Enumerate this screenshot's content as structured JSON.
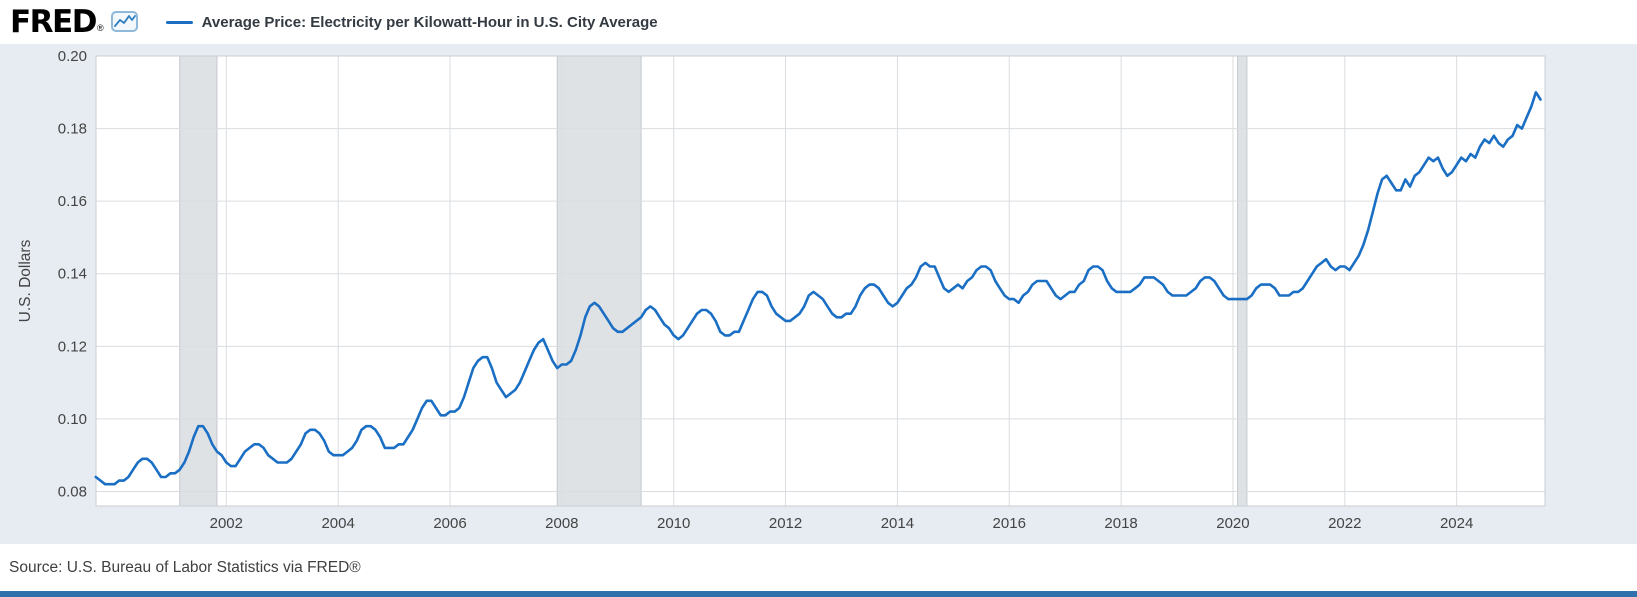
{
  "header": {
    "logo_text": "FRED",
    "registered_mark": "®"
  },
  "footer": {
    "source_text": "Source: U.S. Bureau of Labor Statistics via FRED®"
  },
  "colors": {
    "line": "#1a6fc4",
    "background": "#e6ecf2",
    "plot_background": "#ffffff",
    "gridline": "#d9dde1",
    "plot_border": "#c9ced4",
    "axis_text": "#444444",
    "recession_band": "#dfe2e5",
    "recession_band_edge": "#c4c9cd",
    "legend_text": "#333a41",
    "bottom_bar": "#2e70ad"
  },
  "chart_data": {
    "type": "line",
    "title": "Average Price: Electricity per Kilowatt-Hour in U.S. City Average",
    "xlabel": "",
    "ylabel": "U.S. Dollars",
    "ylim": [
      0.076,
      0.2
    ],
    "yticks": [
      0.08,
      0.1,
      0.12,
      0.14,
      0.16,
      0.18,
      0.2
    ],
    "xlim": [
      1999.67,
      2025.58
    ],
    "xticks": [
      2002,
      2004,
      2006,
      2008,
      2010,
      2012,
      2014,
      2016,
      2018,
      2020,
      2022,
      2024
    ],
    "grid": true,
    "legend_position": "top",
    "recession_bands": [
      [
        2001.167,
        2001.833
      ],
      [
        2007.917,
        2009.417
      ],
      [
        2020.083,
        2020.25
      ]
    ],
    "series": [
      {
        "name": "Average Price: Electricity per Kilowatt-Hour in U.S. City Average",
        "units": "U.S. Dollars",
        "frequency": "monthly",
        "start": {
          "year": 1999,
          "month": 9
        },
        "color": "#1a6fc4",
        "values": [
          0.084,
          0.083,
          0.082,
          0.082,
          0.082,
          0.083,
          0.083,
          0.084,
          0.086,
          0.088,
          0.089,
          0.089,
          0.088,
          0.086,
          0.084,
          0.084,
          0.085,
          0.085,
          0.086,
          0.088,
          0.091,
          0.095,
          0.098,
          0.098,
          0.096,
          0.093,
          0.091,
          0.09,
          0.088,
          0.087,
          0.087,
          0.089,
          0.091,
          0.092,
          0.093,
          0.093,
          0.092,
          0.09,
          0.089,
          0.088,
          0.088,
          0.088,
          0.089,
          0.091,
          0.093,
          0.096,
          0.097,
          0.097,
          0.096,
          0.094,
          0.091,
          0.09,
          0.09,
          0.09,
          0.091,
          0.092,
          0.094,
          0.097,
          0.098,
          0.098,
          0.097,
          0.095,
          0.092,
          0.092,
          0.092,
          0.093,
          0.093,
          0.095,
          0.097,
          0.1,
          0.103,
          0.105,
          0.105,
          0.103,
          0.101,
          0.101,
          0.102,
          0.102,
          0.103,
          0.106,
          0.11,
          0.114,
          0.116,
          0.117,
          0.117,
          0.114,
          0.11,
          0.108,
          0.106,
          0.107,
          0.108,
          0.11,
          0.113,
          0.116,
          0.119,
          0.121,
          0.122,
          0.119,
          0.116,
          0.114,
          0.115,
          0.115,
          0.116,
          0.119,
          0.123,
          0.128,
          0.131,
          0.132,
          0.131,
          0.129,
          0.127,
          0.125,
          0.124,
          0.124,
          0.125,
          0.126,
          0.127,
          0.128,
          0.13,
          0.131,
          0.13,
          0.128,
          0.126,
          0.125,
          0.123,
          0.122,
          0.123,
          0.125,
          0.127,
          0.129,
          0.13,
          0.13,
          0.129,
          0.127,
          0.124,
          0.123,
          0.123,
          0.124,
          0.124,
          0.127,
          0.13,
          0.133,
          0.135,
          0.135,
          0.134,
          0.131,
          0.129,
          0.128,
          0.127,
          0.127,
          0.128,
          0.129,
          0.131,
          0.134,
          0.135,
          0.134,
          0.133,
          0.131,
          0.129,
          0.128,
          0.128,
          0.129,
          0.129,
          0.131,
          0.134,
          0.136,
          0.137,
          0.137,
          0.136,
          0.134,
          0.132,
          0.131,
          0.132,
          0.134,
          0.136,
          0.137,
          0.139,
          0.142,
          0.143,
          0.142,
          0.142,
          0.139,
          0.136,
          0.135,
          0.136,
          0.137,
          0.136,
          0.138,
          0.139,
          0.141,
          0.142,
          0.142,
          0.141,
          0.138,
          0.136,
          0.134,
          0.133,
          0.133,
          0.132,
          0.134,
          0.135,
          0.137,
          0.138,
          0.138,
          0.138,
          0.136,
          0.134,
          0.133,
          0.134,
          0.135,
          0.135,
          0.137,
          0.138,
          0.141,
          0.142,
          0.142,
          0.141,
          0.138,
          0.136,
          0.135,
          0.135,
          0.135,
          0.135,
          0.136,
          0.137,
          0.139,
          0.139,
          0.139,
          0.138,
          0.137,
          0.135,
          0.134,
          0.134,
          0.134,
          0.134,
          0.135,
          0.136,
          0.138,
          0.139,
          0.139,
          0.138,
          0.136,
          0.134,
          0.133,
          0.133,
          0.133,
          0.133,
          0.133,
          0.134,
          0.136,
          0.137,
          0.137,
          0.137,
          0.136,
          0.134,
          0.134,
          0.134,
          0.135,
          0.135,
          0.136,
          0.138,
          0.14,
          0.142,
          0.143,
          0.144,
          0.142,
          0.141,
          0.142,
          0.142,
          0.141,
          0.143,
          0.145,
          0.148,
          0.152,
          0.157,
          0.162,
          0.166,
          0.167,
          0.165,
          0.163,
          0.163,
          0.166,
          0.164,
          0.167,
          0.168,
          0.17,
          0.172,
          0.171,
          0.172,
          0.169,
          0.167,
          0.168,
          0.17,
          0.172,
          0.171,
          0.173,
          0.172,
          0.175,
          0.177,
          0.176,
          0.178,
          0.176,
          0.175,
          0.177,
          0.178,
          0.181,
          0.18,
          0.183,
          0.186,
          0.19,
          0.188
        ]
      }
    ]
  }
}
